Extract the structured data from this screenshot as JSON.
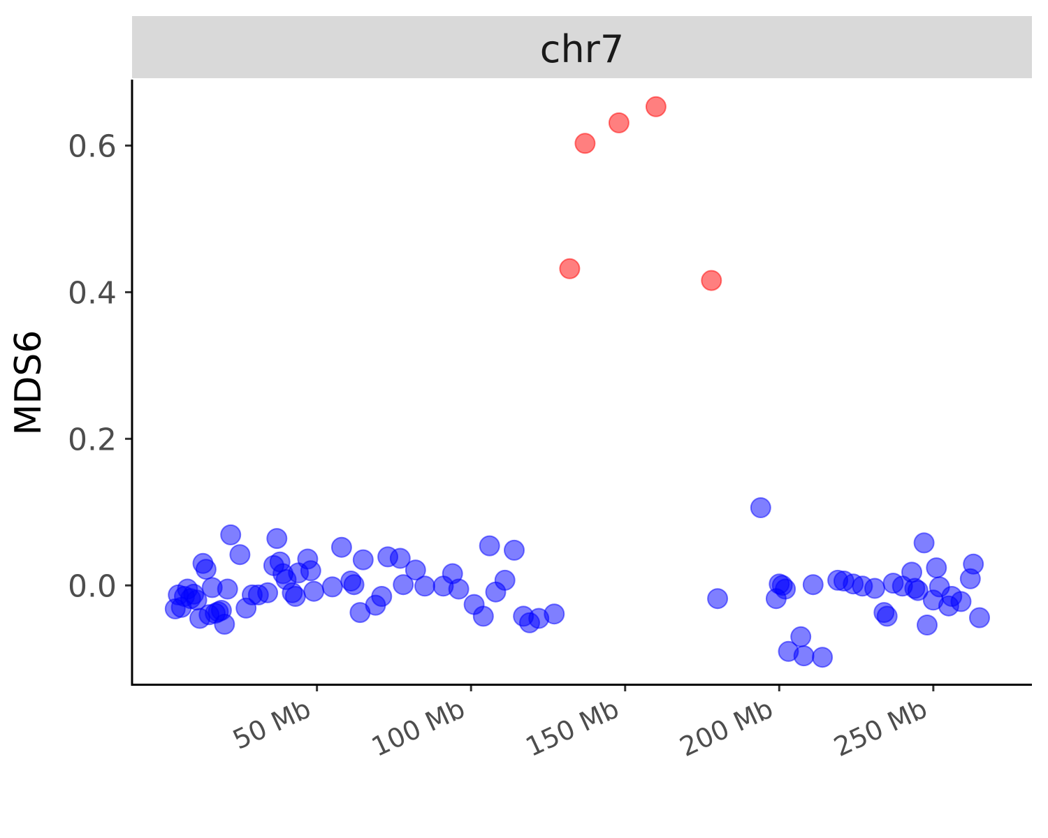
{
  "chart_data": {
    "type": "scatter",
    "facet_label": "chr7",
    "xlabel": "",
    "ylabel": "MDS6",
    "xlim": [
      -10,
      282
    ],
    "ylim": [
      -0.135,
      0.69
    ],
    "x_ticks": [
      50,
      100,
      150,
      200,
      250
    ],
    "x_tick_labels": [
      "50 Mb",
      "100 Mb",
      "150 Mb",
      "200 Mb",
      "250 Mb"
    ],
    "y_ticks": [
      0.0,
      0.2,
      0.4,
      0.6
    ],
    "y_tick_labels": [
      "0.0",
      "0.2",
      "0.4",
      "0.6"
    ],
    "grid": false,
    "legend": "none",
    "series": [
      {
        "color": "#0000ff",
        "opacity": 0.5,
        "points": [
          [
            4,
            -0.032
          ],
          [
            5,
            -0.013
          ],
          [
            6,
            -0.03
          ],
          [
            7,
            -0.015
          ],
          [
            8,
            -0.005
          ],
          [
            9,
            -0.018
          ],
          [
            10,
            -0.012
          ],
          [
            11,
            -0.02
          ],
          [
            12,
            -0.045
          ],
          [
            13,
            0.03
          ],
          [
            14,
            0.022
          ],
          [
            15,
            -0.04
          ],
          [
            16,
            -0.003
          ],
          [
            17,
            -0.038
          ],
          [
            18,
            -0.036
          ],
          [
            19,
            -0.034
          ],
          [
            20,
            -0.053
          ],
          [
            21,
            -0.005
          ],
          [
            22,
            0.069
          ],
          [
            25,
            0.042
          ],
          [
            27,
            -0.031
          ],
          [
            29,
            -0.013
          ],
          [
            31,
            -0.013
          ],
          [
            34,
            -0.01
          ],
          [
            36,
            0.027
          ],
          [
            37,
            0.064
          ],
          [
            38,
            0.032
          ],
          [
            39,
            0.016
          ],
          [
            40,
            0.008
          ],
          [
            42,
            -0.01
          ],
          [
            43,
            -0.015
          ],
          [
            44,
            0.017
          ],
          [
            47,
            0.036
          ],
          [
            48,
            0.02
          ],
          [
            49,
            -0.008
          ],
          [
            55,
            -0.002
          ],
          [
            58,
            0.052
          ],
          [
            61,
            0.006
          ],
          [
            62,
            0.001
          ],
          [
            64,
            -0.037
          ],
          [
            65,
            0.035
          ],
          [
            69,
            -0.027
          ],
          [
            71,
            -0.015
          ],
          [
            73,
            0.039
          ],
          [
            77,
            0.037
          ],
          [
            78,
            0.001
          ],
          [
            82,
            0.021
          ],
          [
            85,
            -0.001
          ],
          [
            91,
            -0.001
          ],
          [
            94,
            0.016
          ],
          [
            96,
            -0.005
          ],
          [
            101,
            -0.026
          ],
          [
            104,
            -0.042
          ],
          [
            106,
            0.054
          ],
          [
            108,
            -0.009
          ],
          [
            111,
            0.007
          ],
          [
            114,
            0.048
          ],
          [
            117,
            -0.042
          ],
          [
            119,
            -0.051
          ],
          [
            122,
            -0.045
          ],
          [
            127,
            -0.039
          ],
          [
            180,
            -0.018
          ],
          [
            194,
            0.106
          ],
          [
            199,
            -0.018
          ],
          [
            200,
            0.002
          ],
          [
            201,
            0.0
          ],
          [
            202,
            -0.005
          ],
          [
            203,
            -0.09
          ],
          [
            207,
            -0.07
          ],
          [
            208,
            -0.096
          ],
          [
            211,
            0.001
          ],
          [
            214,
            -0.098
          ],
          [
            219,
            0.007
          ],
          [
            221,
            0.006
          ],
          [
            224,
            0.002
          ],
          [
            227,
            -0.001
          ],
          [
            231,
            -0.004
          ],
          [
            234,
            -0.037
          ],
          [
            235,
            -0.042
          ],
          [
            237,
            0.003
          ],
          [
            240,
            -0.001
          ],
          [
            243,
            0.018
          ],
          [
            244,
            -0.004
          ],
          [
            245,
            -0.007
          ],
          [
            247,
            0.058
          ],
          [
            248,
            -0.054
          ],
          [
            250,
            -0.02
          ],
          [
            251,
            0.024
          ],
          [
            252,
            -0.002
          ],
          [
            255,
            -0.028
          ],
          [
            256,
            -0.015
          ],
          [
            259,
            -0.022
          ],
          [
            262,
            0.009
          ],
          [
            263,
            0.029
          ],
          [
            265,
            -0.044
          ]
        ]
      },
      {
        "color": "#ff0000",
        "opacity": 0.5,
        "points": [
          [
            132,
            0.432
          ],
          [
            137,
            0.603
          ],
          [
            148,
            0.631
          ],
          [
            160,
            0.653
          ],
          [
            178,
            0.416
          ]
        ]
      }
    ]
  }
}
